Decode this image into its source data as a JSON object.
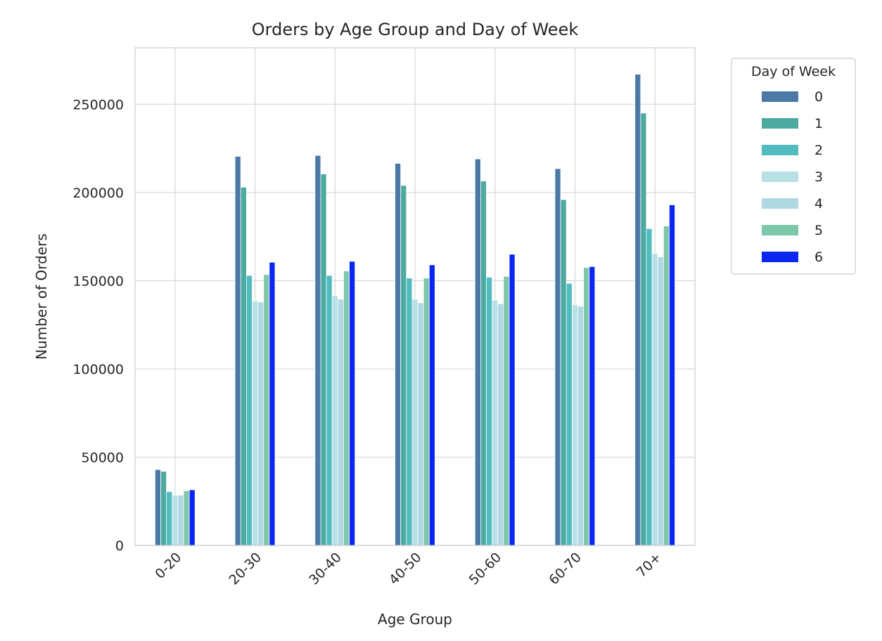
{
  "chart_data": {
    "type": "bar",
    "title": "Orders by Age Group and Day of Week",
    "xlabel": "Age Group",
    "ylabel": "Number of Orders",
    "categories": [
      "0-20",
      "20-30",
      "30-40",
      "40-50",
      "50-60",
      "60-70",
      "70+"
    ],
    "ylim": [
      0,
      282000
    ],
    "yticks": [
      0,
      50000,
      100000,
      150000,
      200000,
      250000
    ],
    "ytick_labels": [
      "0",
      "50000",
      "100000",
      "150000",
      "200000",
      "250000"
    ],
    "grid": true,
    "legend": {
      "title": "Day of Week",
      "placement": "outside-top-right"
    },
    "series": [
      {
        "name": "0",
        "color": "#4c78a8",
        "values": [
          43000,
          220500,
          221000,
          216500,
          219000,
          213500,
          267000
        ]
      },
      {
        "name": "1",
        "color": "#4daaa0",
        "values": [
          42000,
          203000,
          210500,
          204000,
          206500,
          196000,
          245000
        ]
      },
      {
        "name": "2",
        "color": "#50bcbf",
        "values": [
          30500,
          153000,
          153000,
          151500,
          152000,
          148500,
          179500
        ]
      },
      {
        "name": "3",
        "color": "#b9e0e4",
        "values": [
          28500,
          138500,
          141500,
          139500,
          139000,
          136500,
          165500
        ]
      },
      {
        "name": "4",
        "color": "#b0d8e2",
        "values": [
          28500,
          138000,
          139500,
          137500,
          137000,
          135500,
          163500
        ]
      },
      {
        "name": "5",
        "color": "#7cc8a8",
        "values": [
          31000,
          153500,
          155500,
          151500,
          152500,
          157500,
          181000
        ]
      },
      {
        "name": "6",
        "color": "#0a26f2",
        "values": [
          31500,
          160500,
          161000,
          159000,
          165000,
          158000,
          193000
        ]
      }
    ]
  }
}
